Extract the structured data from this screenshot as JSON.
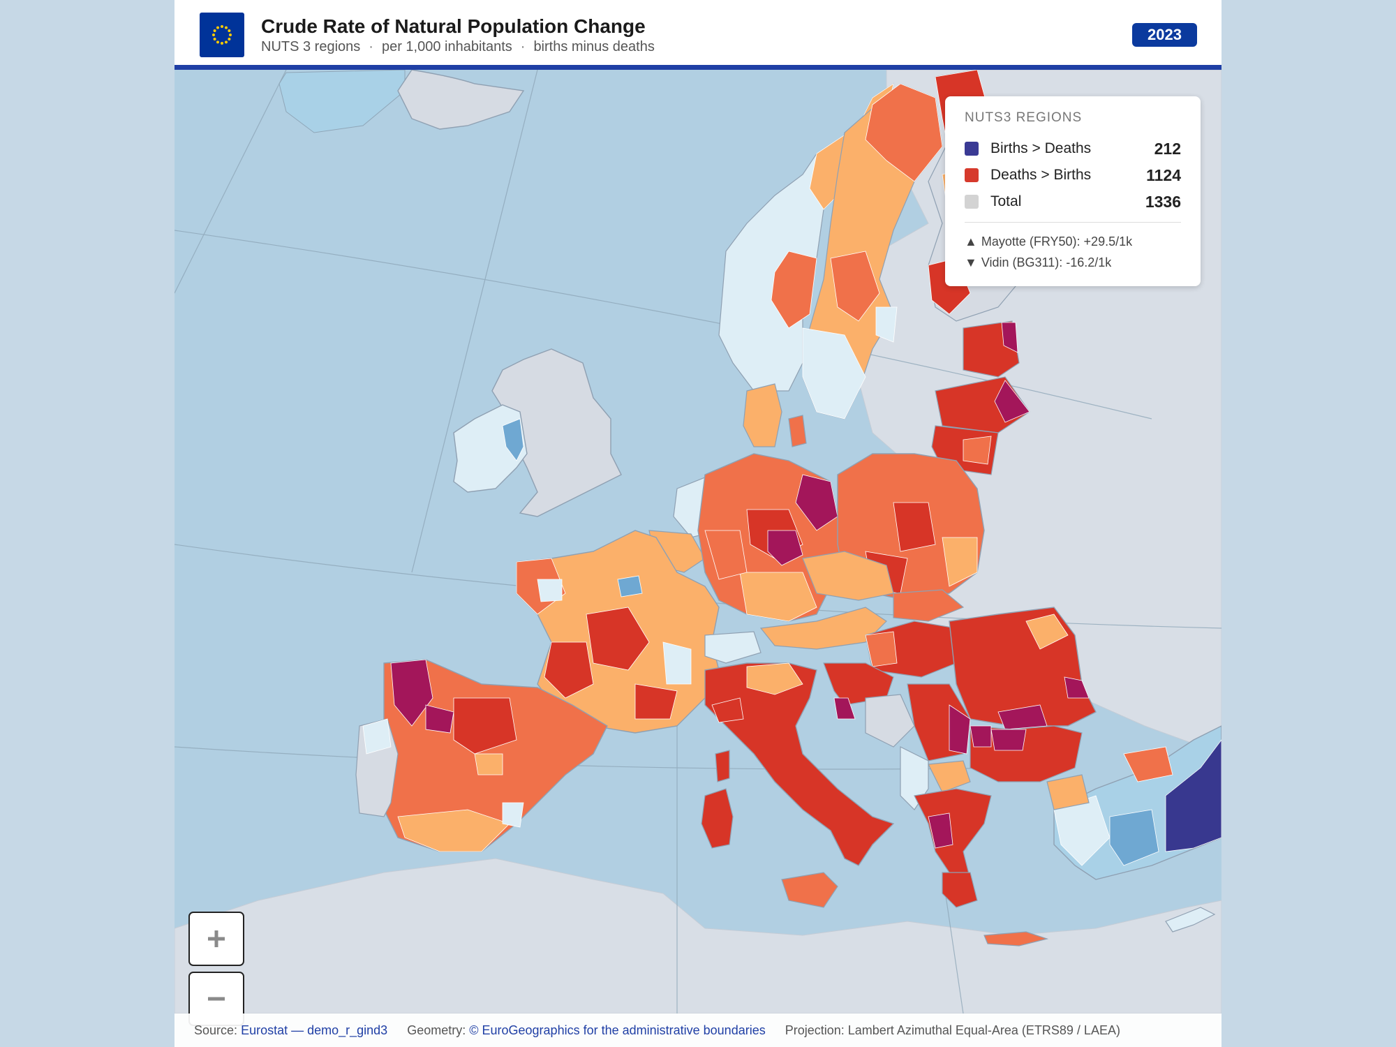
{
  "header": {
    "title": "Crude Rate of Natural Population Change",
    "subtitle_parts": [
      "NUTS 3 regions",
      "per 1,000 inhabitants",
      "births minus deaths"
    ],
    "year": "2023"
  },
  "legend": {
    "title": "NUTS3 REGIONS",
    "rows": [
      {
        "label": "Births > Deaths",
        "count": "212",
        "color": "#3a3a94"
      },
      {
        "label": "Deaths > Births",
        "count": "1124",
        "color": "#d63a2c"
      },
      {
        "label": "Total",
        "count": "1336",
        "color": "#d3d3d3"
      }
    ],
    "max": {
      "symbol": "▲",
      "text": "Mayotte (FRY50): +29.5/1k"
    },
    "min": {
      "symbol": "▼",
      "text": "Vidin (BG311): -16.2/1k"
    }
  },
  "controls": {
    "zoom_in": "+",
    "zoom_out": "−"
  },
  "footer": {
    "source_label": "Source:",
    "source_link": "Eurostat — demo_r_gind3",
    "geometry_label": "Geometry:",
    "geometry_link": "© EuroGeographics for the administrative boundaries",
    "projection": "Projection: Lambert Azimuthal Equal-Area (ETRS89 / LAEA)"
  },
  "colors": {
    "positive_high": "#38388f",
    "positive_mid": "#6fa8d2",
    "positive_low": "#a9d1e7",
    "near_zero": "#deeef6",
    "negative_low": "#fbb06a",
    "negative_mid": "#f0714a",
    "negative_high": "#d73527",
    "negative_extreme": "#a3165a",
    "no_data": "#d6dbe3",
    "sea": "#b1cfe2",
    "land_outside": "#d8dee6",
    "accent": "#1f3fa5"
  }
}
